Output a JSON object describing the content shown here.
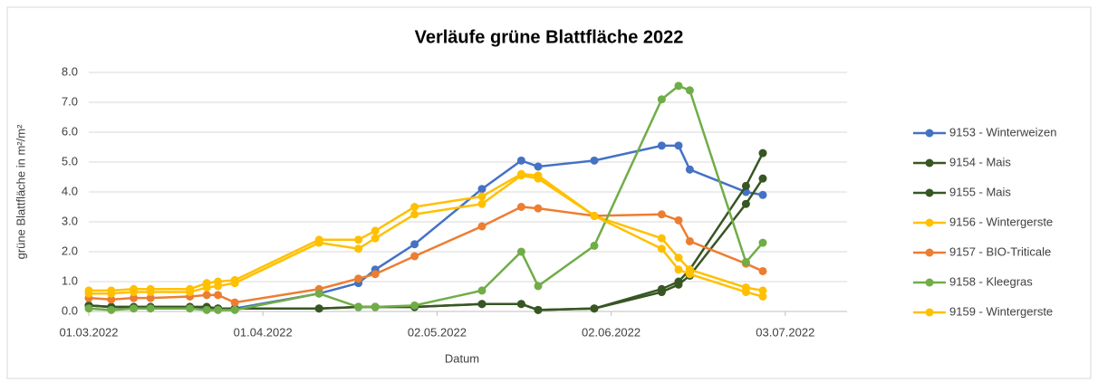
{
  "chart_data": {
    "type": "line",
    "title": "Verläufe grüne Blattfläche 2022",
    "x_label": "Datum",
    "y_label": "grüne Blattfläche in m²/m²",
    "x": [
      "01.03.2022",
      "05.03.2022",
      "09.03.2022",
      "12.03.2022",
      "19.03.2022",
      "22.03.2022",
      "24.03.2022",
      "27.03.2022",
      "11.04.2022",
      "18.04.2022",
      "21.04.2022",
      "28.04.2022",
      "10.05.2022",
      "17.05.2022",
      "20.05.2022",
      "30.05.2022",
      "11.06.2022",
      "14.06.2022",
      "16.06.2022",
      "26.06.2022",
      "29.06.2022"
    ],
    "series": [
      {
        "name": "9153 - Winterweizen",
        "color": "#4472c4",
        "values": [
          0.2,
          0.15,
          0.15,
          0.15,
          0.15,
          0.1,
          0.1,
          0.1,
          0.6,
          0.95,
          1.4,
          2.25,
          4.1,
          5.05,
          4.85,
          5.05,
          5.55,
          5.55,
          4.75,
          4.0,
          3.9
        ]
      },
      {
        "name": "9154 - Mais",
        "color": "#375623",
        "values": [
          0.2,
          0.15,
          0.15,
          0.15,
          0.15,
          0.15,
          0.1,
          0.1,
          0.1,
          0.15,
          0.15,
          0.15,
          0.25,
          0.25,
          0.05,
          0.1,
          0.75,
          1.0,
          1.4,
          4.2,
          5.3
        ]
      },
      {
        "name": "9155 - Mais",
        "color": "#375623",
        "values": [
          0.2,
          0.15,
          0.15,
          0.15,
          0.15,
          0.15,
          0.1,
          0.1,
          0.1,
          0.15,
          0.15,
          0.15,
          0.25,
          0.25,
          0.05,
          0.1,
          0.65,
          0.9,
          1.2,
          3.6,
          4.45
        ]
      },
      {
        "name": "9156 - Wintergerste",
        "color": "#ffc000",
        "values": [
          0.7,
          0.7,
          0.75,
          0.75,
          0.75,
          0.95,
          1.0,
          1.05,
          2.4,
          2.4,
          2.7,
          3.5,
          3.85,
          4.6,
          4.55,
          3.2,
          2.45,
          1.8,
          1.4,
          0.8,
          0.7
        ]
      },
      {
        "name": "9157 - BIO-Triticale",
        "color": "#ed7d31",
        "values": [
          0.45,
          0.4,
          0.45,
          0.45,
          0.5,
          0.55,
          0.55,
          0.3,
          0.75,
          1.1,
          1.25,
          1.85,
          2.85,
          3.5,
          3.45,
          3.2,
          3.25,
          3.05,
          2.35,
          1.6,
          1.35
        ]
      },
      {
        "name": "9158 - Kleegras",
        "color": "#70ad47",
        "values": [
          0.1,
          0.05,
          0.1,
          0.1,
          0.1,
          0.05,
          0.05,
          0.05,
          0.6,
          0.15,
          0.15,
          0.2,
          0.7,
          2.0,
          0.85,
          2.2,
          7.1,
          7.55,
          7.4,
          1.65,
          2.3
        ]
      },
      {
        "name": "9159 - Wintergerste",
        "color": "#ffc000",
        "values": [
          0.6,
          0.6,
          0.65,
          0.65,
          0.65,
          0.8,
          0.85,
          0.95,
          2.3,
          2.1,
          2.45,
          3.25,
          3.6,
          4.55,
          4.45,
          3.2,
          2.1,
          1.4,
          1.25,
          0.65,
          0.5
        ]
      }
    ],
    "xlim": [
      "01.03.2022",
      "14.07.2022"
    ],
    "xticks": [
      "01.03.2022",
      "01.04.2022",
      "02.05.2022",
      "02.06.2022",
      "03.07.2022"
    ],
    "ylim": [
      0,
      8
    ],
    "yticks": [
      {
        "value": 0,
        "label": "0.0"
      },
      {
        "value": 1,
        "label": "1.0"
      },
      {
        "value": 2,
        "label": "2.0"
      },
      {
        "value": 3,
        "label": "3.0"
      },
      {
        "value": 4,
        "label": "4.0"
      },
      {
        "value": 5,
        "label": "5.0"
      },
      {
        "value": 6,
        "label": "6.0"
      },
      {
        "value": 7,
        "label": "7.0"
      },
      {
        "value": 8,
        "label": "8.0"
      }
    ],
    "grid": true,
    "legend": "right"
  }
}
